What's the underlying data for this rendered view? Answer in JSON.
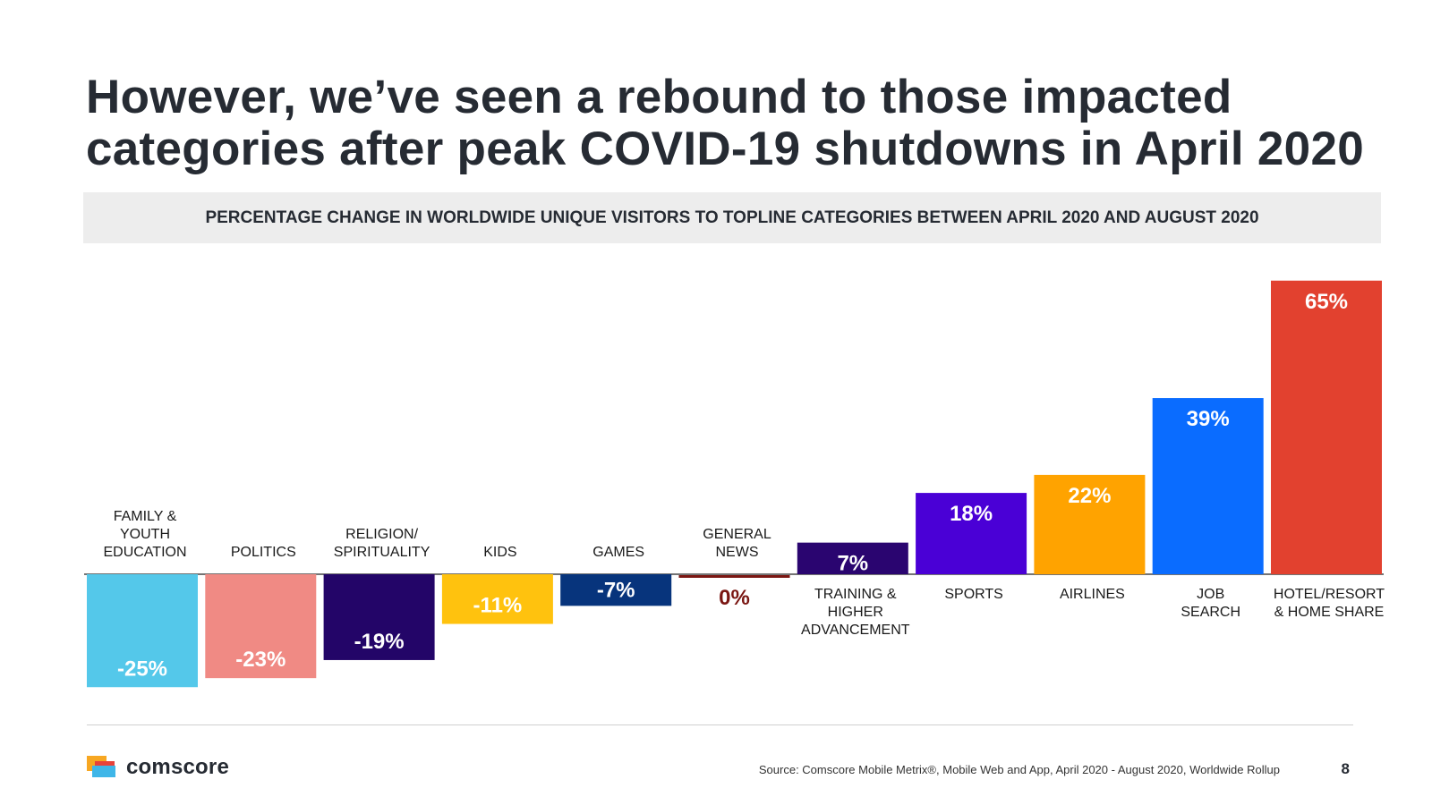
{
  "title": "However, we’ve seen a rebound to those impacted categories after peak COVID-19 shutdowns in April 2020",
  "subtitle": "PERCENTAGE CHANGE IN WORLDWIDE UNIQUE VISITORS TO TOPLINE CATEGORIES BETWEEN APRIL 2020 AND AUGUST 2020",
  "chart_data": {
    "type": "bar",
    "title": "PERCENTAGE CHANGE IN WORLDWIDE UNIQUE VISITORS TO TOPLINE CATEGORIES BETWEEN APRIL 2020 AND AUGUST 2020",
    "xlabel": "",
    "ylabel": "",
    "ylim": [
      -25,
      65
    ],
    "grid": false,
    "categories": [
      [
        "FAMILY &",
        "YOUTH",
        "EDUCATION"
      ],
      [
        "POLITICS"
      ],
      [
        "RELIGION/",
        "SPIRITUALITY"
      ],
      [
        "KIDS"
      ],
      [
        "GAMES"
      ],
      [
        "GENERAL",
        "NEWS"
      ],
      [
        "TRAINING &",
        "HIGHER",
        "ADVANCEMENT"
      ],
      [
        "SPORTS"
      ],
      [
        "AIRLINES"
      ],
      [
        "JOB",
        "SEARCH"
      ],
      [
        "HOTEL/RESORT",
        "& HOME SHARE"
      ]
    ],
    "values": [
      -25,
      -23,
      -19,
      -11,
      -7,
      0,
      7,
      18,
      22,
      39,
      65
    ],
    "value_labels": [
      "-25%",
      "-23%",
      "-19%",
      "-11%",
      "-7%",
      "0%",
      "7%",
      "18%",
      "22%",
      "39%",
      "65%"
    ],
    "colors": [
      "#54c8ea",
      "#f08a84",
      "#230568",
      "#ffc20e",
      "#07347c",
      "#7a1612",
      "#2a0570",
      "#4a00d6",
      "#ffa300",
      "#0a6cff",
      "#e2412f"
    ],
    "label_colors": [
      "#ffffff",
      "#ffffff",
      "#ffffff",
      "#ffffff",
      "#ffffff",
      "#7a1612",
      "#ffffff",
      "#ffffff",
      "#ffffff",
      "#ffffff",
      "#ffffff"
    ]
  },
  "footer": {
    "brand": "comscore",
    "source": "Source: Comscore Mobile Metrix®, Mobile Web and App, April 2020 - August 2020, Worldwide Rollup",
    "page_number": "8"
  }
}
